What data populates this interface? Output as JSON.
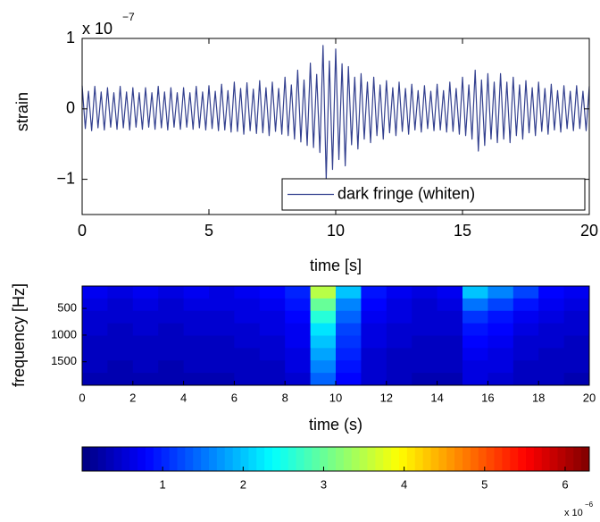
{
  "chart_data": [
    {
      "type": "line",
      "ylabel": "strain",
      "xlabel": "time [s]",
      "y_exponent": {
        "base": "x 10",
        "power": "−7"
      },
      "legend": "lower right",
      "xlim": [
        0,
        20
      ],
      "xticks": [
        0,
        5,
        10,
        15,
        20
      ],
      "ylim": [
        -1.5,
        1
      ],
      "yticks": [
        {
          "value": -1,
          "label": "−1"
        },
        0,
        1
      ],
      "x": [
        0,
        0.125,
        0.25,
        0.375,
        0.5,
        0.625,
        0.75,
        0.875,
        1,
        1.125,
        1.25,
        1.375,
        1.5,
        1.625,
        1.75,
        1.875,
        2,
        2.125,
        2.25,
        2.375,
        2.5,
        2.625,
        2.75,
        2.875,
        3,
        3.125,
        3.25,
        3.375,
        3.5,
        3.625,
        3.75,
        3.875,
        4,
        4.125,
        4.25,
        4.375,
        4.5,
        4.625,
        4.75,
        4.875,
        5,
        5.125,
        5.25,
        5.375,
        5.5,
        5.625,
        5.75,
        5.875,
        6,
        6.125,
        6.25,
        6.375,
        6.5,
        6.625,
        6.75,
        6.875,
        7,
        7.125,
        7.25,
        7.375,
        7.5,
        7.625,
        7.75,
        7.875,
        8,
        8.125,
        8.25,
        8.375,
        8.5,
        8.625,
        8.75,
        8.875,
        9,
        9.125,
        9.25,
        9.375,
        9.5,
        9.625,
        9.75,
        9.875,
        10,
        10.125,
        10.25,
        10.375,
        10.5,
        10.625,
        10.75,
        10.875,
        11,
        11.125,
        11.25,
        11.375,
        11.5,
        11.625,
        11.75,
        11.875,
        12,
        12.125,
        12.25,
        12.375,
        12.5,
        12.625,
        12.75,
        12.875,
        13,
        13.125,
        13.25,
        13.375,
        13.5,
        13.625,
        13.75,
        13.875,
        14,
        14.125,
        14.25,
        14.375,
        14.5,
        14.625,
        14.75,
        14.875,
        15,
        15.125,
        15.25,
        15.375,
        15.5,
        15.625,
        15.75,
        15.875,
        16,
        16.125,
        16.25,
        16.375,
        16.5,
        16.625,
        16.75,
        16.875,
        17,
        17.125,
        17.25,
        17.375,
        17.5,
        17.625,
        17.75,
        17.875,
        18,
        18.125,
        18.25,
        18.375,
        18.5,
        18.625,
        18.75,
        18.875,
        19,
        19.125,
        19.25,
        19.375,
        19.5,
        19.625,
        19.75,
        19.875,
        20
      ],
      "series": [
        {
          "name": "dark fringe (whiten)",
          "color": "#33408f",
          "values": [
            0.33,
            -0.28,
            0.25,
            -0.31,
            0.32,
            -0.27,
            0.24,
            -0.3,
            0.3,
            -0.26,
            0.23,
            -0.29,
            0.32,
            -0.27,
            0.24,
            -0.3,
            0.3,
            -0.26,
            0.23,
            -0.29,
            0.3,
            -0.26,
            0.23,
            -0.29,
            0.32,
            -0.27,
            0.24,
            -0.3,
            0.3,
            -0.26,
            0.23,
            -0.29,
            0.3,
            -0.26,
            0.23,
            -0.29,
            0.32,
            -0.27,
            0.24,
            -0.3,
            0.33,
            -0.28,
            0.25,
            -0.31,
            0.35,
            -0.3,
            0.26,
            -0.33,
            0.38,
            -0.32,
            0.29,
            -0.36,
            0.37,
            -0.31,
            0.28,
            -0.35,
            0.4,
            -0.34,
            0.3,
            -0.38,
            0.38,
            -0.32,
            0.29,
            -0.36,
            0.45,
            -0.38,
            0.34,
            -0.43,
            0.55,
            -0.47,
            0.41,
            -0.52,
            0.65,
            -0.55,
            0.49,
            -0.62,
            0.9,
            -1.0,
            0.68,
            -0.86,
            0.85,
            -0.72,
            0.64,
            -0.81,
            0.6,
            -0.51,
            0.45,
            -0.57,
            0.5,
            -0.43,
            0.38,
            -0.48,
            0.45,
            -0.38,
            0.34,
            -0.43,
            0.4,
            -0.34,
            0.3,
            -0.38,
            0.38,
            -0.32,
            0.29,
            -0.36,
            0.35,
            -0.3,
            0.26,
            -0.33,
            0.33,
            -0.28,
            0.25,
            -0.31,
            0.35,
            -0.3,
            0.26,
            -0.33,
            0.38,
            -0.32,
            0.29,
            -0.36,
            0.45,
            -0.38,
            0.34,
            -0.43,
            0.55,
            -0.6,
            0.41,
            -0.52,
            0.5,
            -0.43,
            0.38,
            -0.48,
            0.5,
            -0.43,
            0.38,
            -0.48,
            0.45,
            -0.38,
            0.34,
            -0.43,
            0.4,
            -0.34,
            0.3,
            -0.38,
            0.38,
            -0.32,
            0.29,
            -0.36,
            0.35,
            -0.3,
            0.26,
            -0.33,
            0.33,
            -0.28,
            0.25,
            -0.31,
            0.33,
            -0.28,
            0.25,
            -0.31,
            0.32
          ]
        }
      ]
    },
    {
      "type": "heatmap",
      "ylabel": "frequency [Hz]",
      "xlabel": "time (s)",
      "xlim": [
        0,
        20
      ],
      "xticks": [
        0,
        2,
        4,
        6,
        8,
        10,
        12,
        14,
        16,
        18,
        20
      ],
      "ylim": [
        80,
        1940
      ],
      "y_reversed": true,
      "yticks": [
        500,
        1000,
        1500
      ],
      "clim": [
        0,
        6.3
      ],
      "cticks": [
        1,
        2,
        3,
        4,
        5,
        6
      ],
      "c_exponent": {
        "base": "x 10",
        "power": "−6"
      },
      "z": [
        [
          0.7,
          0.6,
          0.7,
          0.6,
          0.7,
          0.6,
          0.7,
          0.8,
          1.0,
          3.5,
          2.0,
          0.9,
          0.7,
          0.6,
          0.7,
          2.0,
          1.6,
          1.2,
          0.8,
          0.7
        ],
        [
          0.6,
          0.5,
          0.6,
          0.5,
          0.6,
          0.6,
          0.6,
          0.7,
          0.9,
          3.0,
          1.6,
          0.8,
          0.6,
          0.5,
          0.6,
          1.5,
          1.2,
          0.9,
          0.7,
          0.6
        ],
        [
          0.5,
          0.5,
          0.5,
          0.5,
          0.5,
          0.5,
          0.6,
          0.6,
          0.8,
          2.6,
          1.4,
          0.7,
          0.6,
          0.5,
          0.5,
          1.1,
          0.9,
          0.7,
          0.6,
          0.5
        ],
        [
          0.5,
          0.4,
          0.5,
          0.4,
          0.5,
          0.5,
          0.5,
          0.6,
          0.7,
          2.2,
          1.2,
          0.6,
          0.5,
          0.5,
          0.5,
          0.9,
          0.8,
          0.6,
          0.5,
          0.5
        ],
        [
          0.4,
          0.4,
          0.4,
          0.4,
          0.4,
          0.4,
          0.5,
          0.5,
          0.7,
          2.0,
          1.1,
          0.6,
          0.5,
          0.4,
          0.4,
          0.8,
          0.7,
          0.5,
          0.5,
          0.4
        ],
        [
          0.4,
          0.4,
          0.4,
          0.4,
          0.4,
          0.4,
          0.4,
          0.5,
          0.6,
          1.8,
          1.0,
          0.5,
          0.4,
          0.4,
          0.4,
          0.7,
          0.6,
          0.5,
          0.4,
          0.4
        ],
        [
          0.4,
          0.3,
          0.4,
          0.3,
          0.4,
          0.4,
          0.4,
          0.4,
          0.6,
          1.6,
          0.9,
          0.5,
          0.4,
          0.4,
          0.4,
          0.6,
          0.6,
          0.4,
          0.4,
          0.4
        ],
        [
          0.3,
          0.3,
          0.3,
          0.3,
          0.3,
          0.3,
          0.4,
          0.4,
          0.5,
          1.4,
          0.8,
          0.5,
          0.4,
          0.3,
          0.3,
          0.6,
          0.5,
          0.4,
          0.4,
          0.3
        ]
      ]
    }
  ]
}
